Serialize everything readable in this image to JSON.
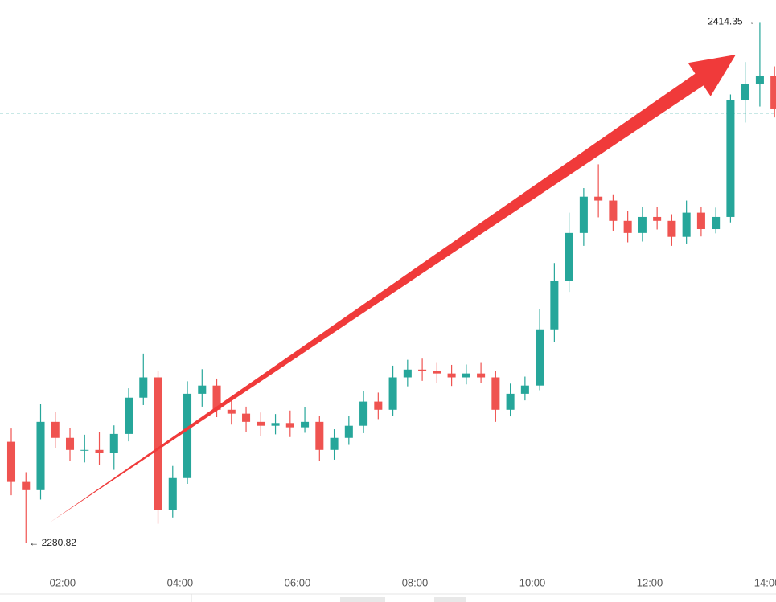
{
  "chart_data": {
    "type": "candlestick",
    "x": [
      "01:00",
      "01:15",
      "01:30",
      "01:45",
      "02:00",
      "02:15",
      "02:30",
      "02:45",
      "03:00",
      "03:15",
      "03:30",
      "03:45",
      "04:00",
      "04:15",
      "04:30",
      "04:45",
      "05:00",
      "05:15",
      "05:30",
      "05:45",
      "06:00",
      "06:15",
      "06:30",
      "06:45",
      "07:00",
      "07:15",
      "07:30",
      "07:45",
      "08:00",
      "08:15",
      "08:30",
      "08:45",
      "09:00",
      "09:15",
      "09:30",
      "09:45",
      "10:00",
      "10:15",
      "10:30",
      "10:45",
      "11:00",
      "11:15",
      "11:30",
      "11:45",
      "12:00",
      "12:15",
      "12:30",
      "12:45",
      "13:00",
      "13:15",
      "13:30",
      "13:45",
      "14:00"
    ],
    "open": [
      2306.8,
      2296.5,
      2294.4,
      2311.9,
      2307.8,
      2304.7,
      2304.7,
      2303.9,
      2308.8,
      2318.1,
      2323.3,
      2289.3,
      2297.5,
      2319.1,
      2321.2,
      2315.0,
      2314.0,
      2311.9,
      2310.9,
      2311.6,
      2310.5,
      2311.9,
      2304.7,
      2307.8,
      2310.9,
      2317.1,
      2315.0,
      2323.3,
      2325.3,
      2325.0,
      2324.3,
      2323.3,
      2324.3,
      2323.3,
      2315.0,
      2319.1,
      2321.2,
      2335.6,
      2348.0,
      2360.3,
      2369.6,
      2368.6,
      2363.4,
      2360.3,
      2364.4,
      2363.4,
      2359.3,
      2365.5,
      2361.3,
      2364.4,
      2394.3,
      2398.4,
      2400.5
    ],
    "high": [
      2310.2,
      2299.0,
      2316.4,
      2314.5,
      2310.3,
      2308.6,
      2309.2,
      2311.0,
      2320.5,
      2329.4,
      2325.0,
      2300.6,
      2322.3,
      2325.4,
      2323.0,
      2317.6,
      2315.8,
      2314.3,
      2313.9,
      2314.8,
      2315.6,
      2313.5,
      2310.0,
      2313.4,
      2319.8,
      2319.4,
      2326.3,
      2327.8,
      2328.1,
      2327.0,
      2326.5,
      2326.6,
      2327.0,
      2324.9,
      2321.7,
      2323.5,
      2340.8,
      2352.6,
      2365.5,
      2371.8,
      2377.9,
      2370.2,
      2366.0,
      2366.9,
      2367.0,
      2365.1,
      2368.6,
      2367.0,
      2366.8,
      2395.8,
      2404.1,
      2414.35,
      2403.0
    ],
    "low": [
      2293.1,
      2280.82,
      2292.0,
      2305.1,
      2301.9,
      2301.5,
      2300.8,
      2299.6,
      2306.9,
      2316.2,
      2285.8,
      2287.4,
      2296.0,
      2315.8,
      2313.1,
      2311.2,
      2309.4,
      2308.2,
      2308.7,
      2308.0,
      2309.1,
      2301.8,
      2302.2,
      2306.0,
      2309.0,
      2312.6,
      2313.5,
      2321.0,
      2322.4,
      2321.9,
      2321.1,
      2321.5,
      2321.8,
      2311.9,
      2313.3,
      2317.4,
      2320.0,
      2332.4,
      2345.2,
      2357.0,
      2364.3,
      2360.9,
      2357.9,
      2358.1,
      2361.2,
      2357.0,
      2357.6,
      2359.4,
      2360.2,
      2363.0,
      2388.6,
      2392.7,
      2389.9
    ],
    "close": [
      2296.5,
      2294.4,
      2311.9,
      2307.8,
      2304.7,
      2304.7,
      2303.9,
      2308.8,
      2318.1,
      2323.3,
      2289.3,
      2297.5,
      2319.1,
      2321.2,
      2315.0,
      2314.0,
      2311.9,
      2310.9,
      2311.6,
      2310.5,
      2311.9,
      2304.7,
      2307.8,
      2310.9,
      2317.1,
      2315.0,
      2323.3,
      2325.3,
      2325.0,
      2324.3,
      2323.3,
      2324.3,
      2323.3,
      2315.0,
      2319.1,
      2321.2,
      2335.6,
      2348.0,
      2360.3,
      2369.6,
      2368.6,
      2363.4,
      2360.3,
      2364.4,
      2363.4,
      2359.3,
      2365.5,
      2361.3,
      2364.4,
      2394.3,
      2398.4,
      2400.5,
      2392.2
    ],
    "up_color": "#26a69a",
    "down_color": "#ef5350",
    "xlim": [
      "00:56",
      "14:09"
    ],
    "xticks": [
      "02:00",
      "04:00",
      "06:00",
      "08:00",
      "10:00",
      "12:00",
      "14:00"
    ],
    "ylim": [
      2275,
      2420
    ],
    "price_line": 2391.0,
    "price_line_color": "#26a69a",
    "annotations": [
      {
        "x": "13:45",
        "value": 2414.35,
        "label": "2414.35 →",
        "side": "left"
      },
      {
        "x": "01:15",
        "value": 2280.82,
        "label": "← 2280.82",
        "side": "right"
      }
    ]
  }
}
